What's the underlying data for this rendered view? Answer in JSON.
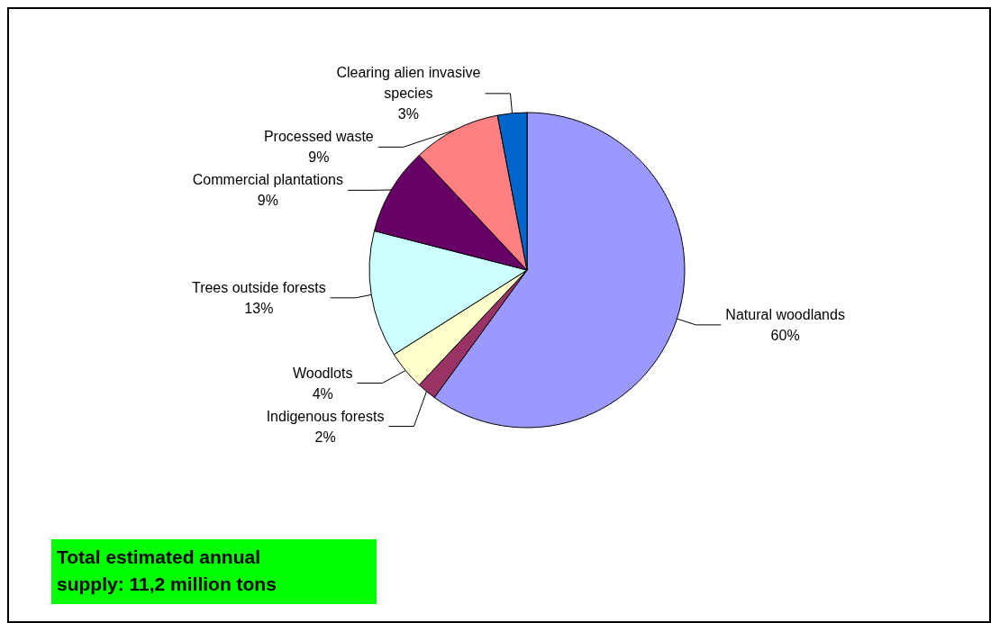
{
  "chart_data": {
    "type": "pie",
    "categories": [
      "Natural woodlands",
      "Indigenous forests",
      "Woodlots",
      "Trees outside forests",
      "Commercial plantations",
      "Processed waste",
      "Clearing alien invasive species"
    ],
    "values": [
      60,
      2,
      4,
      13,
      9,
      9,
      3
    ],
    "colors": [
      "#9999ff",
      "#993366",
      "#ffffcc",
      "#ccffff",
      "#660066",
      "#ff8080",
      "#0066cc"
    ],
    "value_labels": [
      "60%",
      "2%",
      "4%",
      "13%",
      "9%",
      "9%",
      "3%"
    ],
    "annotations": [
      "Total estimated annual supply: 11,2 million tons"
    ]
  }
}
